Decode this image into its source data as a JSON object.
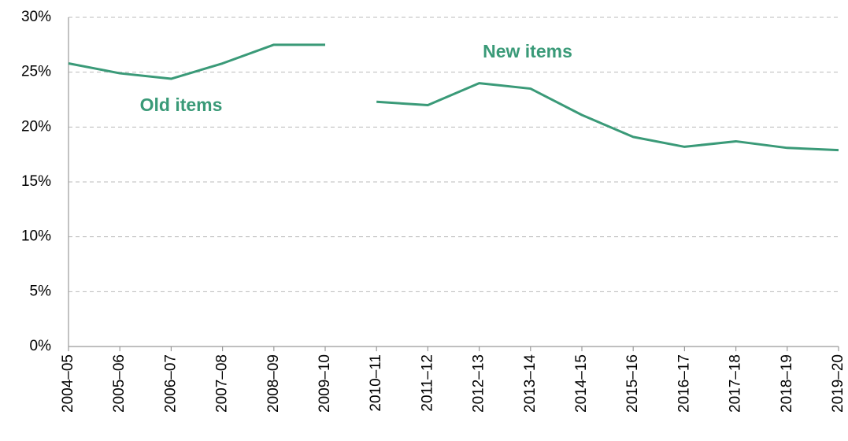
{
  "chart_data": {
    "type": "line",
    "categories": [
      "2004–05",
      "2005–06",
      "2006–07",
      "2007–08",
      "2008–09",
      "2009–10",
      "2010–11",
      "2011–12",
      "2012–13",
      "2013–14",
      "2014–15",
      "2015–16",
      "2016–17",
      "2017–18",
      "2018–19",
      "2019–20"
    ],
    "series": [
      {
        "name": "Old items",
        "color": "#3a9a78",
        "values": [
          25.8,
          24.9,
          24.4,
          25.8,
          27.5,
          27.5,
          null,
          null,
          null,
          null,
          null,
          null,
          null,
          null,
          null,
          null
        ]
      },
      {
        "name": "New items",
        "color": "#3a9a78",
        "values": [
          null,
          null,
          null,
          null,
          null,
          null,
          22.3,
          22.0,
          24.0,
          23.5,
          21.1,
          19.1,
          18.2,
          18.7,
          18.1,
          17.9
        ]
      }
    ],
    "ylim": [
      0,
      30
    ],
    "yticks": [
      {
        "value": 0,
        "label": "0%"
      },
      {
        "value": 5,
        "label": "5%"
      },
      {
        "value": 10,
        "label": "10%"
      },
      {
        "value": 15,
        "label": "15%"
      },
      {
        "value": 20,
        "label": "20%"
      },
      {
        "value": 25,
        "label": "25%"
      },
      {
        "value": 30,
        "label": "30%"
      }
    ],
    "grid": true
  }
}
